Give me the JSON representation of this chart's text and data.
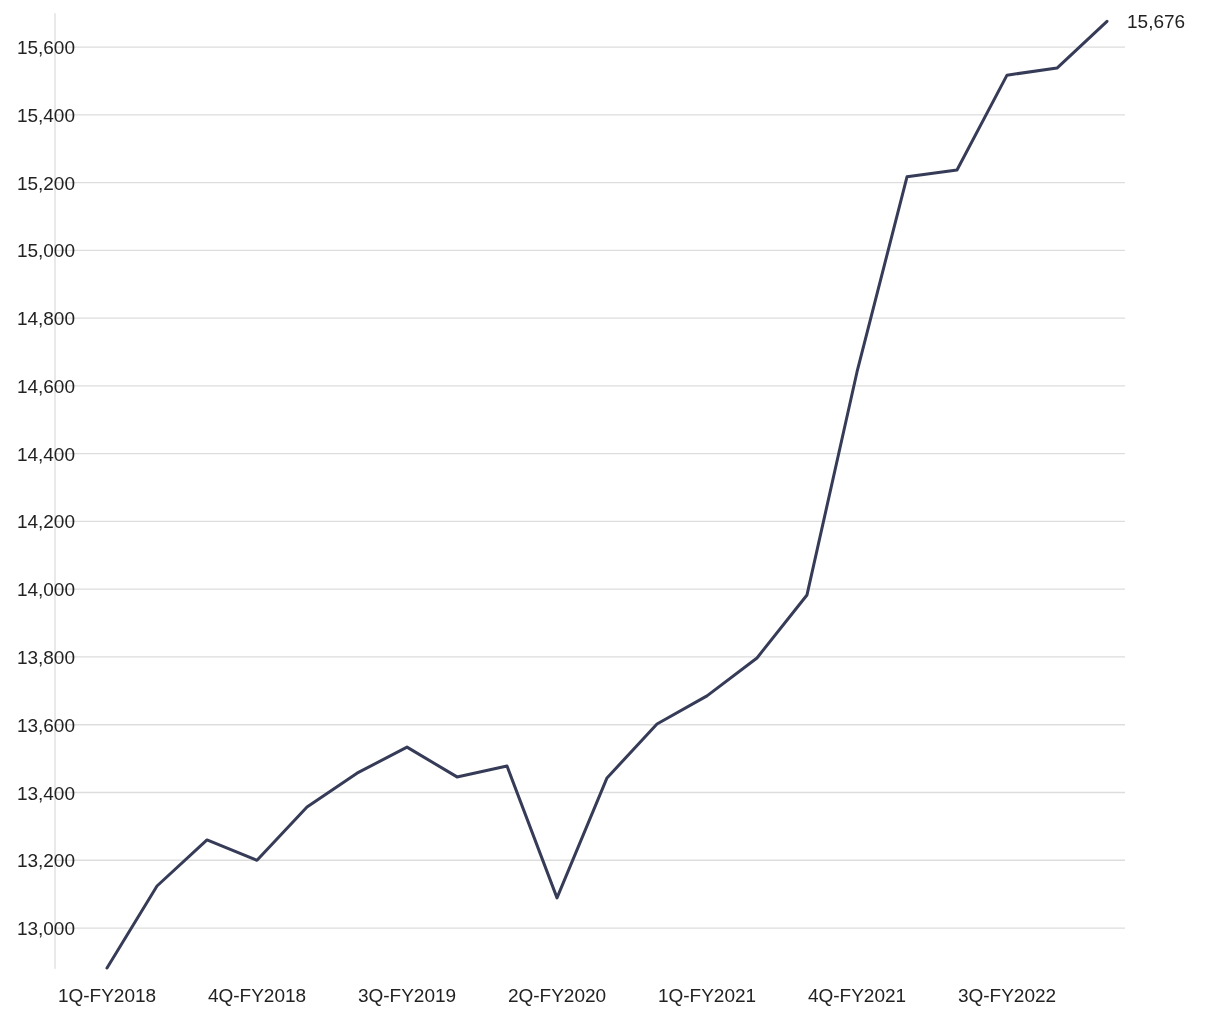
{
  "chart_data": {
    "type": "line",
    "categories": [
      "1Q-FY2018",
      null,
      null,
      "4Q-FY2018",
      null,
      null,
      "3Q-FY2019",
      null,
      null,
      "2Q-FY2020",
      null,
      null,
      "1Q-FY2021",
      null,
      null,
      "4Q-FY2021",
      null,
      null,
      "3Q-FY2022",
      null,
      null
    ],
    "series": [
      {
        "color": "#363b57",
        "values": [
          12882,
          13124,
          13260,
          13200,
          13357,
          13457,
          13534,
          13446,
          13478,
          13089,
          13443,
          13602,
          13685,
          13797,
          13983,
          14641,
          15217,
          15237,
          15517,
          15538,
          15676
        ],
        "value_labels": [
          null,
          null,
          null,
          null,
          null,
          null,
          null,
          null,
          null,
          null,
          null,
          null,
          null,
          null,
          null,
          null,
          null,
          null,
          null,
          null,
          "15,676"
        ]
      }
    ],
    "ylim": [
      12880,
      15700
    ],
    "yticks": [
      {
        "value": 13000,
        "label": "13,000"
      },
      {
        "value": 13200,
        "label": "13,200"
      },
      {
        "value": 13400,
        "label": "13,400"
      },
      {
        "value": 13600,
        "label": "13,600"
      },
      {
        "value": 13800,
        "label": "13,800"
      },
      {
        "value": 14000,
        "label": "14,000"
      },
      {
        "value": 14200,
        "label": "14,200"
      },
      {
        "value": 14400,
        "label": "14,400"
      },
      {
        "value": 14600,
        "label": "14,600"
      },
      {
        "value": 14800,
        "label": "14,800"
      },
      {
        "value": 15000,
        "label": "15,000"
      },
      {
        "value": 15200,
        "label": "15,200"
      },
      {
        "value": 15400,
        "label": "15,400"
      },
      {
        "value": 15600,
        "label": "15,600"
      }
    ],
    "grid": "y",
    "marker": "none",
    "line_style": "solid"
  }
}
